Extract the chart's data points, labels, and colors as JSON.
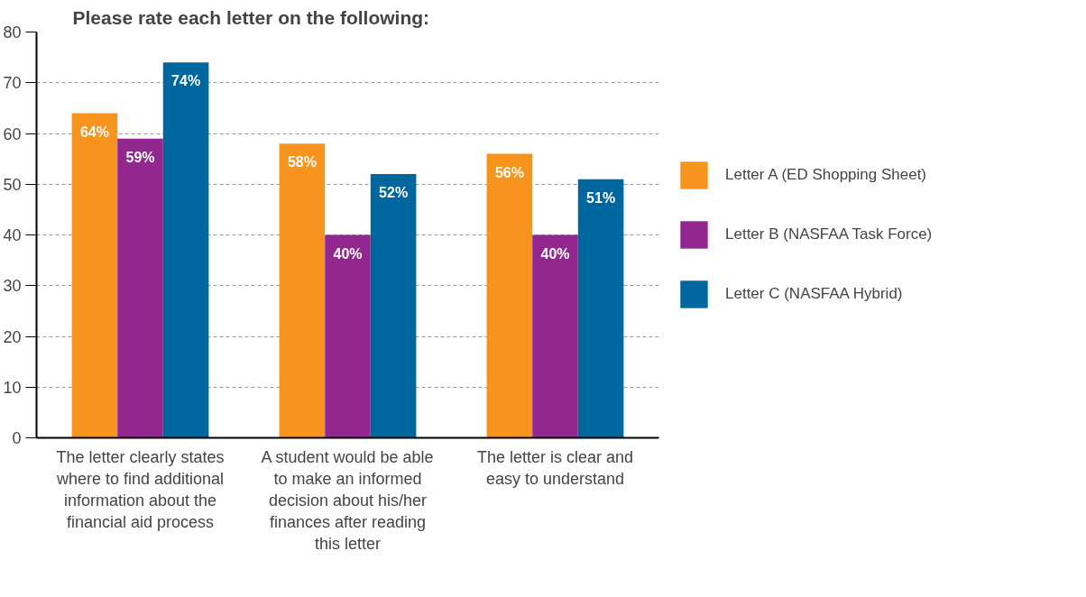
{
  "chart_data": {
    "type": "bar",
    "title": "Please rate each letter on the following:",
    "categories": [
      "The letter clearly states where to find additional information about the financial aid process",
      "A student would be able to make an informed decision about his/her finances after reading this letter",
      "The letter is clear and easy to understand"
    ],
    "series": [
      {
        "name": "Letter A (ED Shopping Sheet)",
        "color": "#f7941d",
        "values": [
          64,
          58,
          56
        ],
        "value_labels": [
          "64%",
          "58%",
          "56%"
        ]
      },
      {
        "name": "Letter B (NASFAA Task Force)",
        "color": "#92278f",
        "values": [
          59,
          40,
          40
        ],
        "value_labels": [
          "59%",
          "40%",
          "40%"
        ]
      },
      {
        "name": "Letter C (NASFAA Hybrid)",
        "color": "#00679e",
        "values": [
          74,
          52,
          51
        ],
        "value_labels": [
          "74%",
          "52%",
          "51%"
        ]
      }
    ],
    "ylim": [
      0,
      80
    ],
    "yticks": [
      0,
      10,
      20,
      30,
      40,
      50,
      60,
      70,
      80
    ],
    "grid": "y",
    "legend": "right"
  }
}
